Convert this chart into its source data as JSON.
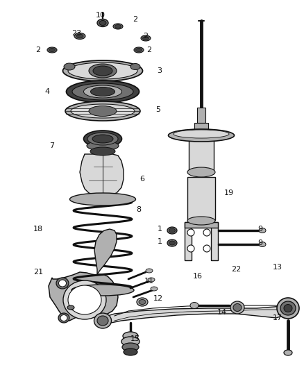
{
  "bg_color": "#ffffff",
  "lc": "#333333",
  "lc_dark": "#111111",
  "gray_light": "#d8d8d8",
  "gray_mid": "#b0b0b0",
  "gray_dark": "#707070",
  "gray_vdark": "#404040",
  "labels": [
    [
      "10",
      145,
      22
    ],
    [
      "2",
      195,
      28
    ],
    [
      "23",
      110,
      48
    ],
    [
      "2",
      210,
      52
    ],
    [
      "2",
      55,
      72
    ],
    [
      "2",
      215,
      72
    ],
    [
      "3",
      230,
      102
    ],
    [
      "4",
      68,
      132
    ],
    [
      "5",
      228,
      158
    ],
    [
      "7",
      75,
      210
    ],
    [
      "6",
      205,
      258
    ],
    [
      "18",
      55,
      330
    ],
    [
      "8",
      200,
      302
    ],
    [
      "19",
      330,
      278
    ],
    [
      "1",
      230,
      330
    ],
    [
      "1",
      230,
      348
    ],
    [
      "9",
      375,
      330
    ],
    [
      "9",
      375,
      350
    ],
    [
      "21",
      55,
      392
    ],
    [
      "11",
      215,
      405
    ],
    [
      "16",
      285,
      398
    ],
    [
      "22",
      340,
      388
    ],
    [
      "12",
      228,
      430
    ],
    [
      "14",
      320,
      450
    ],
    [
      "13",
      400,
      385
    ],
    [
      "17",
      400,
      458
    ],
    [
      "15",
      195,
      488
    ]
  ],
  "label_fontsize": 8
}
